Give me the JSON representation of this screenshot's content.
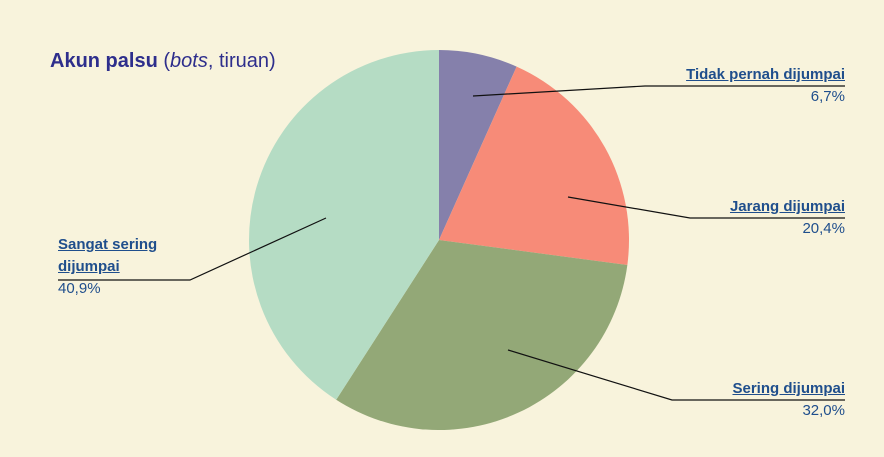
{
  "chart_data": {
    "type": "pie",
    "title": [
      "Akun palsu",
      " (",
      "bots",
      ", tiruan)"
    ],
    "categories": [
      "Tidak pernah dijumpai",
      "Jarang dijumpai",
      "Sering dijumpai",
      "Sangat sering dijumpai"
    ],
    "values": [
      6.7,
      20.4,
      32.0,
      40.9
    ],
    "value_labels": [
      "6,7%",
      "20,4%",
      "32,0%",
      "40,9%"
    ],
    "colors": [
      "#8580ab",
      "#f78b78",
      "#93a877",
      "#b5dcc4"
    ]
  }
}
